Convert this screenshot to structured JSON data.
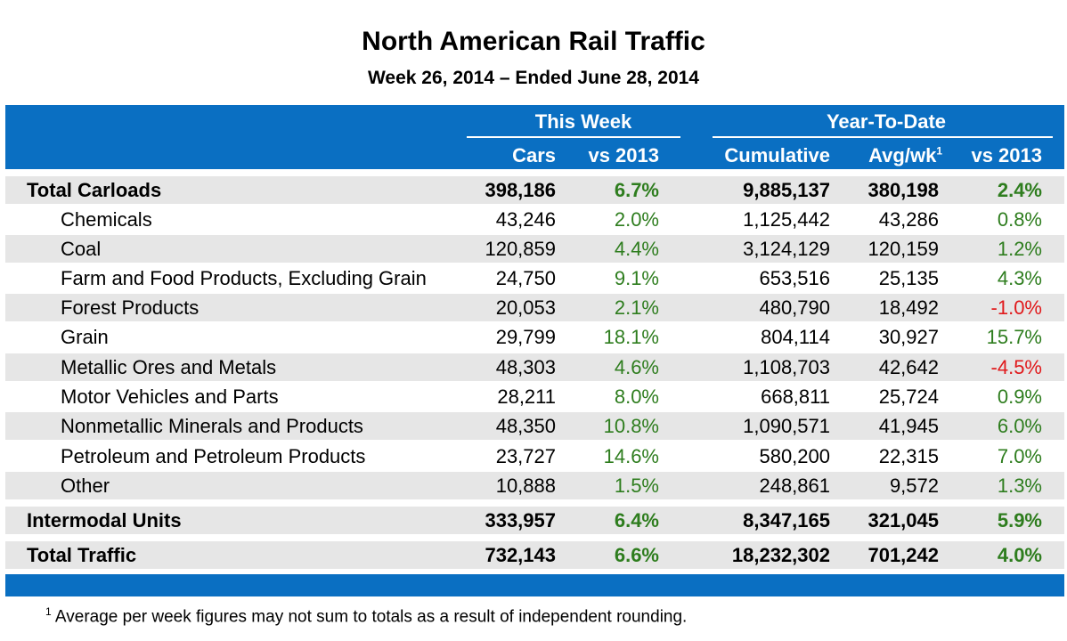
{
  "header": {
    "title": "North American Rail Traffic",
    "subtitle": "Week 26, 2014 – Ended June 28, 2014"
  },
  "columns": {
    "group_this_week": "This Week",
    "group_ytd": "Year-To-Date",
    "cars": "Cars",
    "vs2013_week": "vs 2013",
    "cumulative": "Cumulative",
    "avg_wk": "Avg/wk",
    "avg_wk_note": "1",
    "vs2013_ytd": "vs 2013"
  },
  "colors": {
    "header_bg": "#0a6fc2",
    "positive": "#2e7d1e",
    "negative": "#e0191b",
    "row_shade": "#e6e6e6"
  },
  "chart_data": {
    "type": "table",
    "title": "North American Rail Traffic",
    "subtitle": "Week 26, 2014 – Ended June 28, 2014",
    "rows": [
      {
        "label": "Total Carloads",
        "cars": "398,186",
        "cars_vs": "6.7%",
        "cumulative": "9,885,137",
        "avg": "380,198",
        "ytd_vs": "2.4%",
        "bold": true,
        "indent": false
      },
      {
        "label": "Chemicals",
        "cars": "43,246",
        "cars_vs": "2.0%",
        "cumulative": "1,125,442",
        "avg": "43,286",
        "ytd_vs": "0.8%",
        "bold": false,
        "indent": true
      },
      {
        "label": "Coal",
        "cars": "120,859",
        "cars_vs": "4.4%",
        "cumulative": "3,124,129",
        "avg": "120,159",
        "ytd_vs": "1.2%",
        "bold": false,
        "indent": true
      },
      {
        "label": "Farm and Food Products, Excluding Grain",
        "cars": "24,750",
        "cars_vs": "9.1%",
        "cumulative": "653,516",
        "avg": "25,135",
        "ytd_vs": "4.3%",
        "bold": false,
        "indent": true
      },
      {
        "label": "Forest Products",
        "cars": "20,053",
        "cars_vs": "2.1%",
        "cumulative": "480,790",
        "avg": "18,492",
        "ytd_vs": "-1.0%",
        "bold": false,
        "indent": true
      },
      {
        "label": "Grain",
        "cars": "29,799",
        "cars_vs": "18.1%",
        "cumulative": "804,114",
        "avg": "30,927",
        "ytd_vs": "15.7%",
        "bold": false,
        "indent": true
      },
      {
        "label": "Metallic Ores and Metals",
        "cars": "48,303",
        "cars_vs": "4.6%",
        "cumulative": "1,108,703",
        "avg": "42,642",
        "ytd_vs": "-4.5%",
        "bold": false,
        "indent": true
      },
      {
        "label": "Motor Vehicles and Parts",
        "cars": "28,211",
        "cars_vs": "8.0%",
        "cumulative": "668,811",
        "avg": "25,724",
        "ytd_vs": "0.9%",
        "bold": false,
        "indent": true
      },
      {
        "label": "Nonmetallic Minerals and Products",
        "cars": "48,350",
        "cars_vs": "10.8%",
        "cumulative": "1,090,571",
        "avg": "41,945",
        "ytd_vs": "6.0%",
        "bold": false,
        "indent": true
      },
      {
        "label": "Petroleum and Petroleum Products",
        "cars": "23,727",
        "cars_vs": "14.6%",
        "cumulative": "580,200",
        "avg": "22,315",
        "ytd_vs": "7.0%",
        "bold": false,
        "indent": true
      },
      {
        "label": "Other",
        "cars": "10,888",
        "cars_vs": "1.5%",
        "cumulative": "248,861",
        "avg": "9,572",
        "ytd_vs": "1.3%",
        "bold": false,
        "indent": true
      },
      {
        "label": "Intermodal Units",
        "cars": "333,957",
        "cars_vs": "6.4%",
        "cumulative": "8,347,165",
        "avg": "321,045",
        "ytd_vs": "5.9%",
        "bold": true,
        "indent": false
      },
      {
        "label": "Total Traffic",
        "cars": "732,143",
        "cars_vs": "6.6%",
        "cumulative": "18,232,302",
        "avg": "701,242",
        "ytd_vs": "4.0%",
        "bold": true,
        "indent": false
      }
    ]
  },
  "footnote": {
    "marker": "1",
    "text": "Average per week figures may not sum to totals as a result of independent rounding."
  }
}
